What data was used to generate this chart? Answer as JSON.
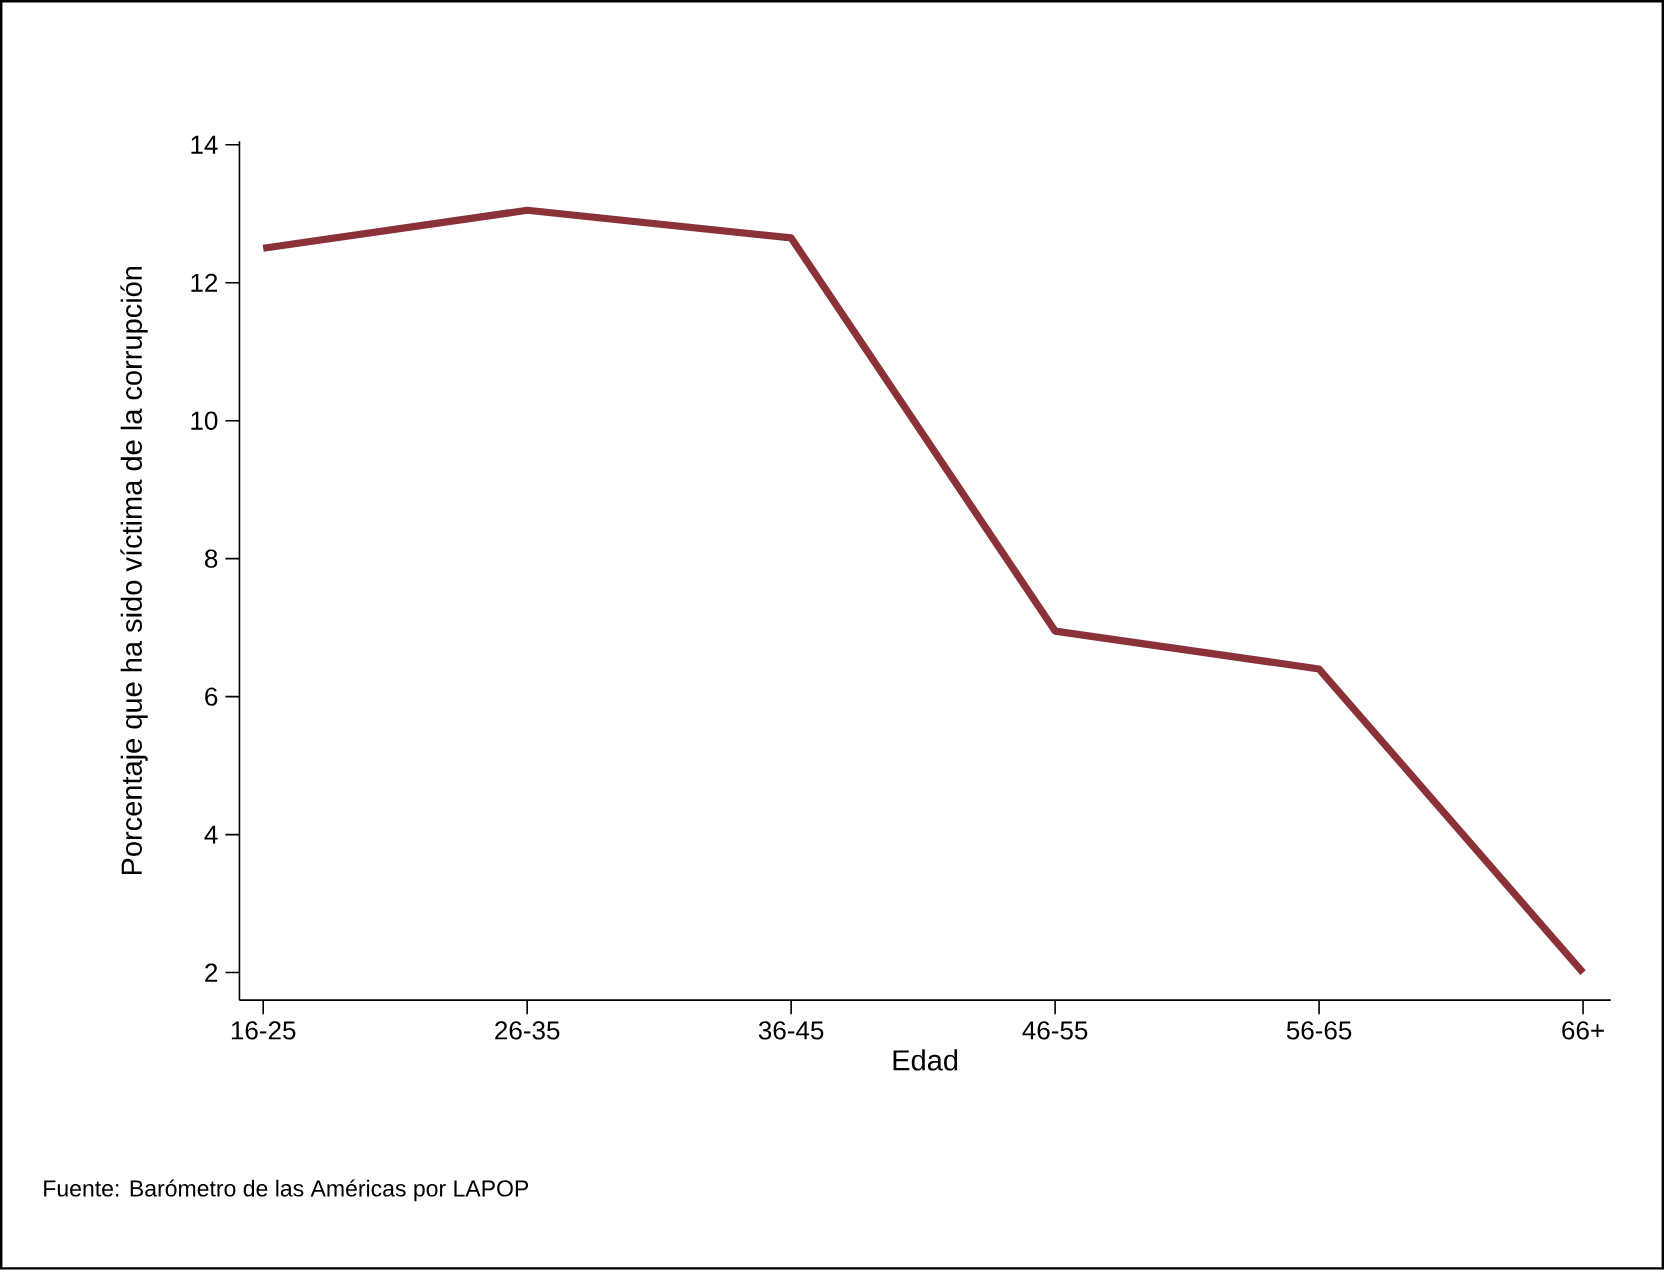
{
  "chart_data": {
    "type": "line",
    "xlabel": "Edad",
    "ylabel": "Porcentaje que ha sido víctima de la corrupción",
    "categories": [
      "16-25",
      "26-35",
      "36-45",
      "46-55",
      "56-65",
      "66+"
    ],
    "series": [
      {
        "color": "#8b3238",
        "values": [
          12.5,
          13.05,
          12.65,
          6.95,
          6.4,
          2.0
        ]
      }
    ],
    "ylim": [
      1.6,
      14.05
    ],
    "yticks": [
      2,
      4,
      6,
      8,
      10,
      12,
      14
    ],
    "marker": "none",
    "line_style": "solid",
    "annotations": [
      "Fuente: Barómetro de las Américas por LAPOP"
    ]
  }
}
